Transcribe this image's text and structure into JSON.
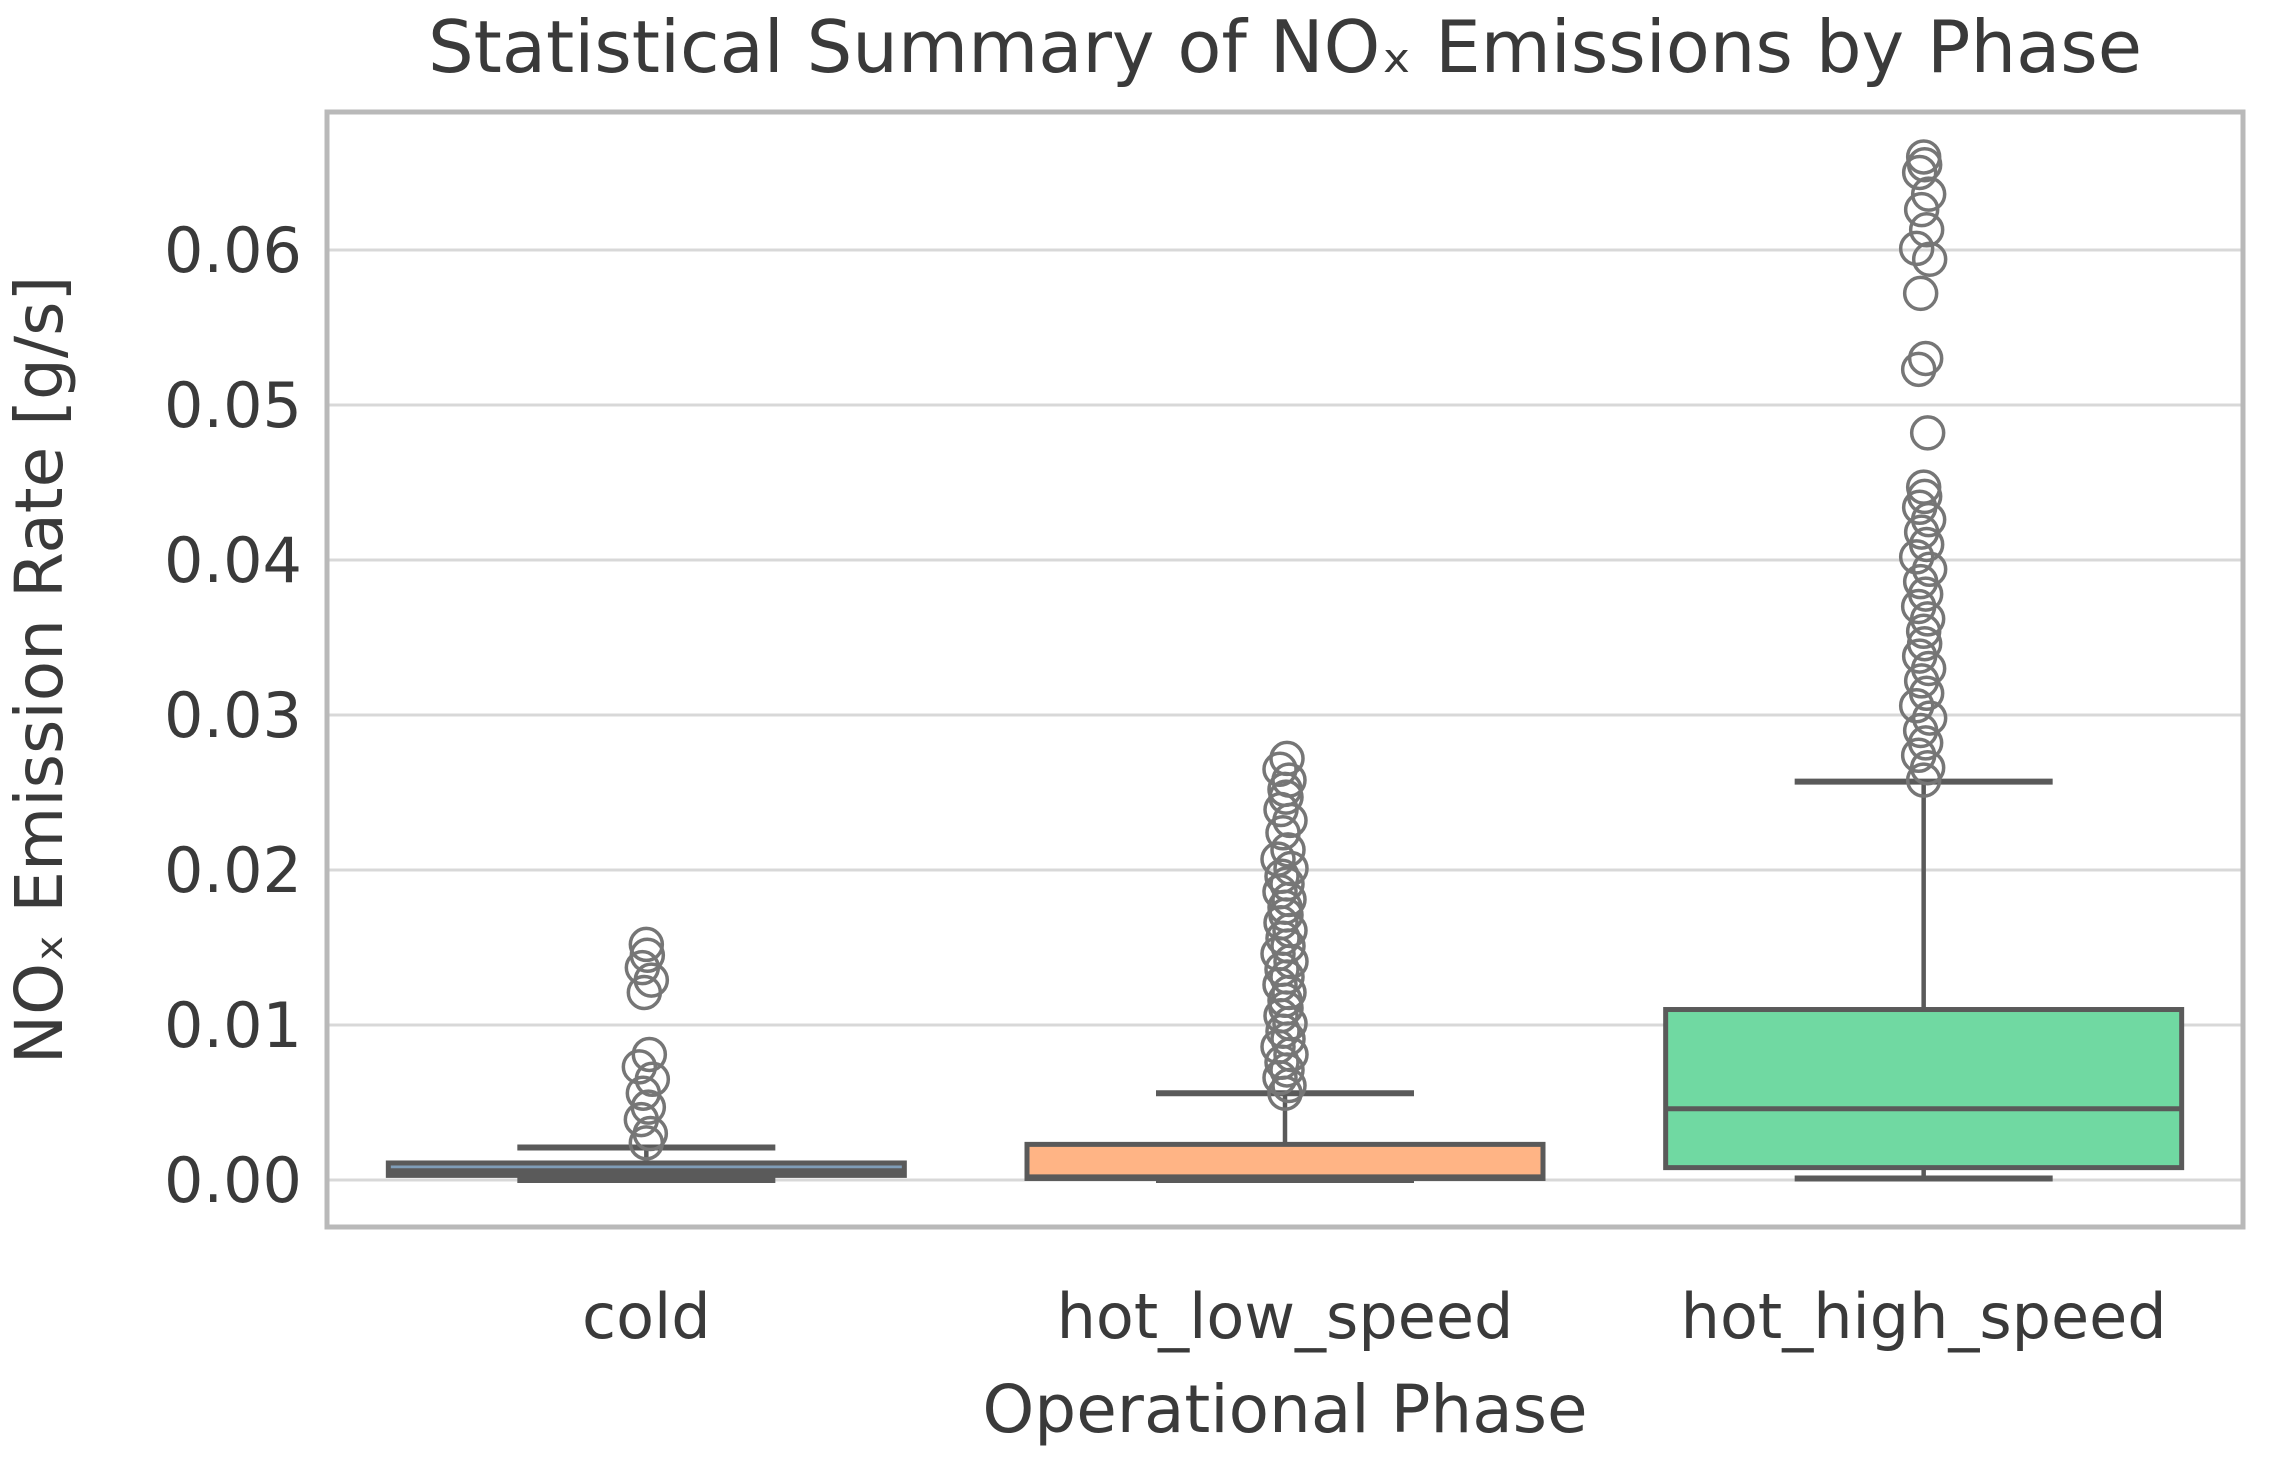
{
  "figure": {
    "background": "#ffffff"
  },
  "chart_data": {
    "type": "boxplot",
    "title": "Statistical Summary of NOₓ Emissions by Phase",
    "xlabel": "Operational Phase",
    "ylabel": "NOₓ Emission Rate [g/s]",
    "categories": [
      "cold",
      "hot_low_speed",
      "hot_high_speed"
    ],
    "ylim": [
      -0.00303,
      0.0689
    ],
    "yticks": [
      0.0,
      0.01,
      0.02,
      0.03,
      0.04,
      0.05,
      0.06
    ],
    "ytick_labels": [
      "0.00",
      "0.01",
      "0.02",
      "0.03",
      "0.04",
      "0.05",
      "0.06"
    ],
    "grid": "horizontal",
    "legend": "none",
    "boxes": [
      {
        "category": "cold",
        "fill_color": "#7f9db8",
        "q1": 0.0003,
        "median": 0.0006,
        "q3": 0.0011,
        "whisker_low": 0.0,
        "whisker_high": 0.0021,
        "outliers": [
          0.0024,
          0.003,
          0.0039,
          0.0047,
          0.0056,
          0.0065,
          0.0073,
          0.0081,
          0.0121,
          0.0129,
          0.0137,
          0.0145,
          0.0152
        ]
      },
      {
        "category": "hot_low_speed",
        "fill_color": "#ffb485",
        "q1": 0.0001,
        "median": 0.0002,
        "q3": 0.0023,
        "whisker_low": 0.0,
        "whisker_high": 0.0056,
        "outliers": [
          0.0056,
          0.0061,
          0.0066,
          0.0071,
          0.0076,
          0.0081,
          0.0086,
          0.0091,
          0.0096,
          0.0101,
          0.0106,
          0.0111,
          0.0116,
          0.0121,
          0.0126,
          0.0131,
          0.0136,
          0.0141,
          0.0146,
          0.0151,
          0.0156,
          0.0161,
          0.0166,
          0.0171,
          0.0176,
          0.0181,
          0.0186,
          0.0191,
          0.0196,
          0.0201,
          0.0207,
          0.0213,
          0.0224,
          0.0232,
          0.0239,
          0.0247,
          0.0252,
          0.0258,
          0.0265,
          0.0272
        ]
      },
      {
        "category": "hot_high_speed",
        "fill_color": "#70d9a2",
        "q1": 0.0008,
        "median": 0.0046,
        "q3": 0.011,
        "whisker_low": 0.0001,
        "whisker_high": 0.0257,
        "outliers": [
          0.0258,
          0.0266,
          0.0274,
          0.0282,
          0.029,
          0.0298,
          0.0306,
          0.0314,
          0.0322,
          0.033,
          0.0338,
          0.0346,
          0.0354,
          0.0362,
          0.037,
          0.0378,
          0.0386,
          0.0394,
          0.0402,
          0.041,
          0.0418,
          0.0426,
          0.0434,
          0.0441,
          0.0447,
          0.0482,
          0.0523,
          0.053,
          0.0572,
          0.0594,
          0.0601,
          0.0613,
          0.0626,
          0.0636,
          0.065,
          0.0655,
          0.066
        ]
      }
    ],
    "style": {
      "edge_color": "#5a5a5a",
      "outlier_color": "#767676",
      "grid_color": "#d8d8d8",
      "frame_color": "#b9b9b9",
      "text_color": "#3a3a3a"
    }
  }
}
